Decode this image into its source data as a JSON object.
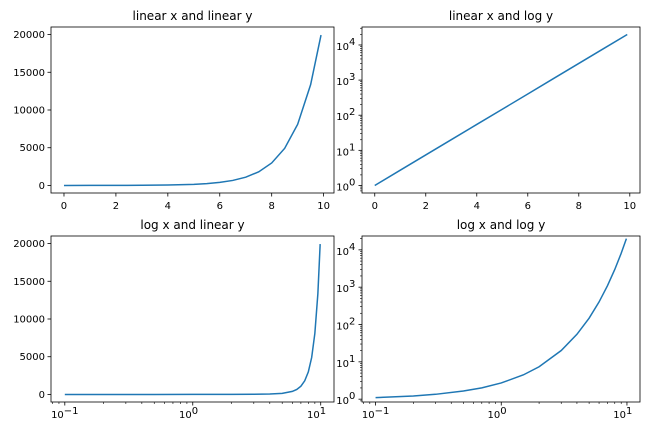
{
  "chart_data": [
    {
      "type": "line",
      "title": "linear x and linear y",
      "xlabel": "",
      "ylabel": "",
      "xscale": "linear",
      "yscale": "linear",
      "xlim": [
        -0.5,
        10.4
      ],
      "ylim": [
        -1000,
        21000
      ],
      "xticks": [
        0,
        2,
        4,
        6,
        8,
        10
      ],
      "xtick_labels": [
        "0",
        "2",
        "4",
        "6",
        "8",
        "10"
      ],
      "yticks": [
        0,
        5000,
        10000,
        15000,
        20000
      ],
      "ytick_labels": [
        "0",
        "5000",
        "10000",
        "15000",
        "20000"
      ],
      "grid": false,
      "series": [
        {
          "color": "#1f77b4",
          "x": [
            0,
            1,
            2,
            3,
            4,
            5,
            5.5,
            6,
            6.5,
            7,
            7.5,
            8,
            8.5,
            9,
            9.5,
            9.9
          ],
          "y": [
            1,
            2.7,
            7.4,
            20.1,
            54.6,
            148,
            245,
            403,
            665,
            1097,
            1808,
            2981,
            4915,
            8103,
            13360,
            19930
          ]
        }
      ]
    },
    {
      "type": "line",
      "title": "linear x and log y",
      "xlabel": "",
      "ylabel": "",
      "xscale": "linear",
      "yscale": "log",
      "xlim": [
        -0.5,
        10.4
      ],
      "ylim": [
        0.61,
        32500
      ],
      "xticks": [
        0,
        2,
        4,
        6,
        8,
        10
      ],
      "xtick_labels": [
        "0",
        "2",
        "4",
        "6",
        "8",
        "10"
      ],
      "yticks": [
        1,
        10,
        100,
        1000,
        10000
      ],
      "ytick_labels": [
        "10^0",
        "10^1",
        "10^2",
        "10^3",
        "10^4"
      ],
      "ytick_bases": [
        "10",
        "10",
        "10",
        "10",
        "10"
      ],
      "ytick_exps": [
        "0",
        "1",
        "2",
        "3",
        "4"
      ],
      "grid": false,
      "series": [
        {
          "color": "#1f77b4",
          "x": [
            0,
            1,
            2,
            3,
            4,
            5,
            6,
            7,
            8,
            9,
            9.9
          ],
          "y": [
            1,
            2.72,
            7.39,
            20.1,
            54.6,
            148,
            403,
            1097,
            2981,
            8103,
            19930
          ]
        }
      ]
    },
    {
      "type": "line",
      "title": "log x and linear y",
      "xlabel": "",
      "ylabel": "",
      "xscale": "log",
      "yscale": "linear",
      "xlim": [
        0.078,
        12.7
      ],
      "ylim": [
        -1000,
        21000
      ],
      "xticks": [
        0.1,
        1,
        10
      ],
      "xtick_labels": [
        "10^-1",
        "10^0",
        "10^1"
      ],
      "xtick_bases": [
        "10",
        "10",
        "10"
      ],
      "xtick_exps": [
        "−1",
        "0",
        "1"
      ],
      "yticks": [
        0,
        5000,
        10000,
        15000,
        20000
      ],
      "ytick_labels": [
        "0",
        "5000",
        "10000",
        "15000",
        "20000"
      ],
      "grid": false,
      "series": [
        {
          "color": "#1f77b4",
          "x": [
            0.1,
            0.5,
            1,
            2,
            3,
            4,
            5,
            6,
            6.5,
            7,
            7.5,
            8,
            8.5,
            9,
            9.5,
            9.9
          ],
          "y": [
            1.1,
            1.6,
            2.7,
            7.4,
            20.1,
            54.6,
            148,
            403,
            665,
            1097,
            1808,
            2981,
            4915,
            8103,
            13360,
            19930
          ]
        }
      ]
    },
    {
      "type": "line",
      "title": "log x and log y",
      "xlabel": "",
      "ylabel": "",
      "xscale": "log",
      "yscale": "log",
      "xlim": [
        0.078,
        12.7
      ],
      "ylim": [
        0.84,
        23500
      ],
      "xticks": [
        0.1,
        1,
        10
      ],
      "xtick_labels": [
        "10^-1",
        "10^0",
        "10^1"
      ],
      "xtick_bases": [
        "10",
        "10",
        "10"
      ],
      "xtick_exps": [
        "−1",
        "0",
        "1"
      ],
      "yticks": [
        1,
        10,
        100,
        1000,
        10000
      ],
      "ytick_labels": [
        "10^0",
        "10^1",
        "10^2",
        "10^3",
        "10^4"
      ],
      "ytick_bases": [
        "10",
        "10",
        "10",
        "10",
        "10"
      ],
      "ytick_exps": [
        "0",
        "1",
        "2",
        "3",
        "4"
      ],
      "grid": false,
      "series": [
        {
          "color": "#1f77b4",
          "x": [
            0.1,
            0.2,
            0.3,
            0.5,
            0.7,
            1,
            1.5,
            2,
            3,
            4,
            5,
            6,
            7,
            8,
            9,
            9.9
          ],
          "y": [
            1.1,
            1.22,
            1.35,
            1.65,
            2.01,
            2.72,
            4.48,
            7.39,
            20.1,
            54.6,
            148,
            403,
            1097,
            2981,
            8103,
            19930
          ]
        }
      ]
    }
  ]
}
